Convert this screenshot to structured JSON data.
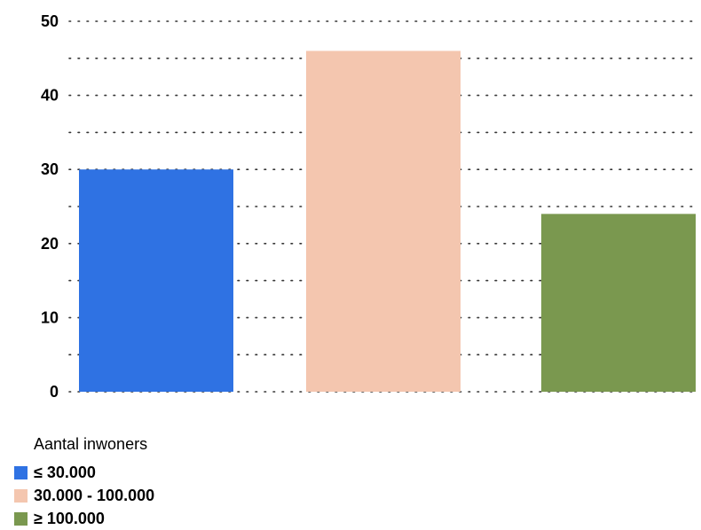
{
  "chart_data": {
    "type": "bar",
    "categories": [
      "≤ 30.000",
      "30.000 - 100.000",
      "≥ 100.000"
    ],
    "values": [
      30,
      46,
      24
    ],
    "colors": [
      "#2f72e3",
      "#f4c6af",
      "#7a984f"
    ],
    "ylim": [
      0,
      50
    ],
    "yticks": [
      0,
      10,
      20,
      30,
      40,
      50
    ],
    "yticks_labels": [
      "0",
      "10",
      "20",
      "30",
      "40",
      "50"
    ],
    "grid": true,
    "legend": {
      "title": "Aantal inwoners",
      "placement": "bottom-left",
      "items": [
        "≤ 30.000",
        "30.000 - 100.000",
        "≥ 100.000"
      ]
    }
  }
}
